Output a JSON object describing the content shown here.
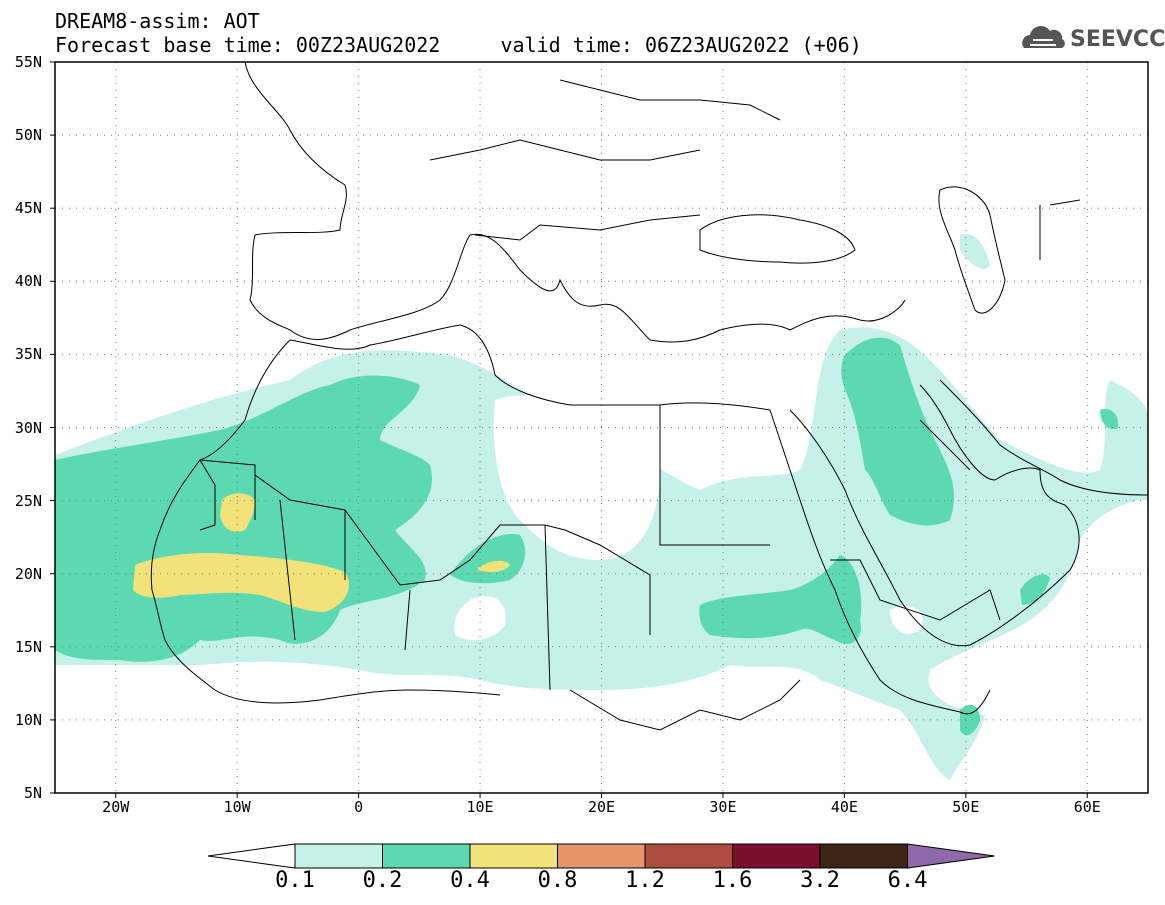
{
  "header": {
    "line1": "DREAM8-assim: AOT",
    "line2": "Forecast base time: 00Z23AUG2022     valid time: 06Z23AUG2022 (+06)",
    "logo_text": "SEEVCCC",
    "logo_icon": "cloud-icon"
  },
  "map": {
    "lat_labels": [
      "55N",
      "50N",
      "45N",
      "40N",
      "35N",
      "30N",
      "25N",
      "20N",
      "15N",
      "10N",
      "5N"
    ],
    "lon_labels": [
      "20W",
      "10W",
      "0",
      "10E",
      "20E",
      "30E",
      "40E",
      "50E",
      "60E"
    ],
    "lat_range": [
      5,
      55
    ],
    "lon_range": [
      -25,
      65
    ],
    "gridlines": true
  },
  "colorbar": {
    "tick_labels": [
      "0.1",
      "0.2",
      "0.4",
      "0.8",
      "1.2",
      "1.6",
      "3.2",
      "6.4"
    ],
    "colors": [
      "#ffffff",
      "#c6f0ea",
      "#5dd9b2",
      "#f2e27a",
      "#e9956c",
      "#ad4c3f",
      "#7a0f2a",
      "#3e2616",
      "#8e6aaa"
    ]
  }
}
